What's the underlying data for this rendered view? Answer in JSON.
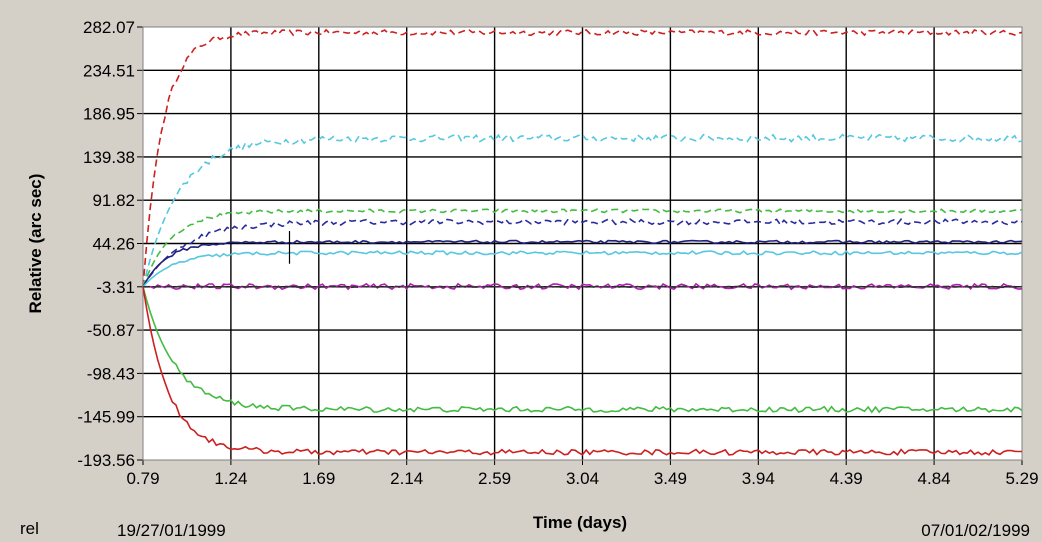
{
  "chart_data": {
    "type": "line",
    "xlabel": "Time (days)",
    "ylabel": "Relative (arc sec)",
    "x_ticks": [
      "0.79",
      "1.24",
      "1.69",
      "2.14",
      "2.59",
      "3.04",
      "3.49",
      "3.94",
      "4.39",
      "4.84",
      "5.29"
    ],
    "y_ticks": [
      "282.07",
      "234.51",
      "186.95",
      "139.38",
      "91.82",
      "44.26",
      "-3.31",
      "-50.87",
      "-98.43",
      "-145.99",
      "-193.56"
    ],
    "xlim": [
      0.79,
      5.29
    ],
    "ylim": [
      -193.56,
      282.07
    ],
    "grid": true,
    "series": [
      {
        "color": "#cc2020",
        "dashed": true,
        "start": -3.31,
        "final": 276,
        "tau": 0.1,
        "noise": 3
      },
      {
        "color": "#55c8e0",
        "dashed": true,
        "start": -3.31,
        "final": 160,
        "tau": 0.18,
        "noise": 4
      },
      {
        "color": "#44bb44",
        "dashed": true,
        "start": -3.31,
        "final": 80,
        "tau": 0.14,
        "noise": 2
      },
      {
        "color": "#2a2aa0",
        "dashed": true,
        "start": -3.31,
        "final": 68,
        "tau": 0.2,
        "noise": 3
      },
      {
        "color": "#20207a",
        "dashed": false,
        "start": -3.31,
        "final": 46,
        "tau": 0.12,
        "noise": 1.5
      },
      {
        "color": "#55c8e0",
        "dashed": false,
        "start": -3.31,
        "final": 34,
        "tau": 0.15,
        "noise": 2
      },
      {
        "color": "#aa22aa",
        "dashed": false,
        "start": -3.31,
        "final": -3,
        "tau": 0.05,
        "noise": 3
      },
      {
        "color": "#333333",
        "dashed": true,
        "start": -3.31,
        "final": -3.31,
        "tau": 0.05,
        "noise": 0.5
      },
      {
        "color": "#44bb44",
        "dashed": false,
        "start": -3.31,
        "final": -138,
        "tau": 0.16,
        "noise": 3
      },
      {
        "color": "#cc2020",
        "dashed": false,
        "start": -3.31,
        "final": -185,
        "tau": 0.13,
        "noise": 3
      }
    ]
  },
  "footer": {
    "left_label": "rel",
    "start_date": "19/27/01/1999",
    "end_date": "07/01/02/1999"
  }
}
